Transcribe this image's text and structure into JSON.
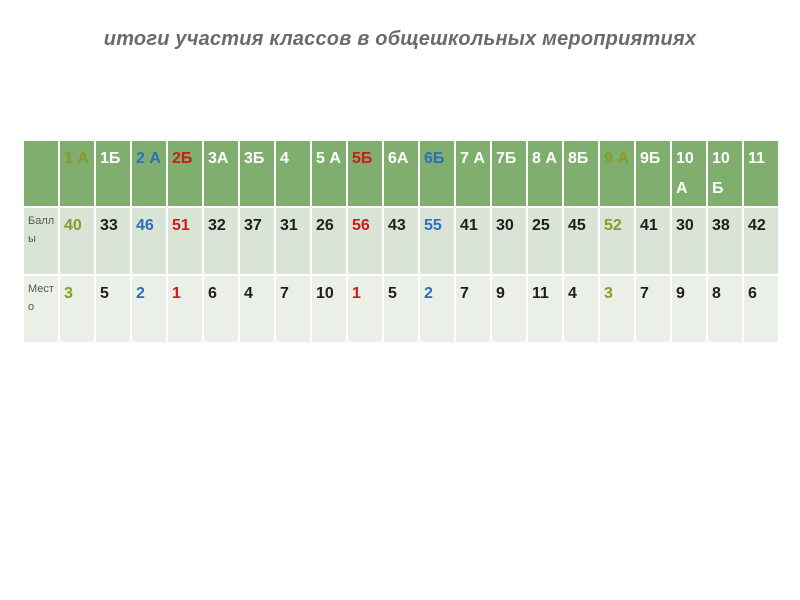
{
  "title": "итоги участия классов в общешкольных мероприятиях",
  "table": {
    "header": [
      "",
      "1 А",
      "1Б",
      "2 А",
      "2Б",
      "3А",
      "3Б",
      "4",
      "5 А",
      "5Б",
      "6А",
      "6Б",
      "7 А",
      "7Б",
      "8 А",
      "8Б",
      "9 А",
      "9Б",
      "10 А",
      "10 Б",
      "11"
    ],
    "rows": [
      {
        "label": "Баллы",
        "values": [
          "40",
          "33",
          "46",
          "51",
          "32",
          "37",
          "31",
          "26",
          "56",
          "43",
          "55",
          "41",
          "30",
          "25",
          "45",
          "52",
          "41",
          "30",
          "38",
          "42"
        ]
      },
      {
        "label": "Место",
        "values": [
          "3",
          "5",
          "2",
          "1",
          "6",
          "4",
          "7",
          "10",
          "1",
          "5",
          "2",
          "7",
          "9",
          "11",
          "4",
          "3",
          "7",
          "9",
          "8",
          "6"
        ]
      }
    ],
    "highlight_colors": {
      "first_place": "#d11a1a",
      "second_place": "#2e6fb5",
      "third_place": "#8a9a2a",
      "header_bg": "#7fae6e"
    }
  }
}
